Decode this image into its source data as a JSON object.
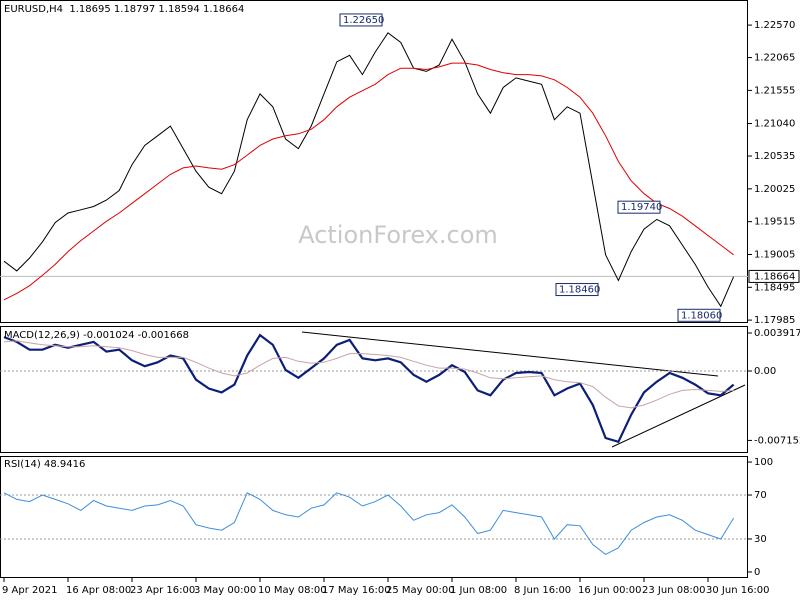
{
  "chart_data": [
    {
      "type": "line",
      "title": "EURUSD,H4  1.18695 1.18797 1.18594 1.18664",
      "watermark": "ActionForex.com",
      "ylim": [
        1.1794,
        1.2296
      ],
      "yticks": [
        {
          "value": 1.2257,
          "label": "1.22570"
        },
        {
          "value": 1.22065,
          "label": "1.22065"
        },
        {
          "value": 1.21555,
          "label": "1.21555"
        },
        {
          "value": 1.2104,
          "label": "1.21040"
        },
        {
          "value": 1.20535,
          "label": "1.20535"
        },
        {
          "value": 1.20025,
          "label": "1.20025"
        },
        {
          "value": 1.19515,
          "label": "1.19515"
        },
        {
          "value": 1.19005,
          "label": "1.19005"
        },
        {
          "value": 1.18495,
          "label": "1.18495"
        },
        {
          "value": 1.17985,
          "label": "1.17985"
        }
      ],
      "series": [
        {
          "color": "#000000",
          "values": [
            1.189,
            1.1875,
            1.1895,
            1.192,
            1.195,
            1.1965,
            1.197,
            1.1975,
            1.1985,
            1.2,
            1.204,
            1.207,
            1.2085,
            1.21,
            1.2065,
            1.203,
            1.2005,
            1.1995,
            1.203,
            1.211,
            1.215,
            1.213,
            1.208,
            1.2065,
            1.21,
            1.215,
            1.22,
            1.221,
            1.218,
            1.2215,
            1.2245,
            1.223,
            1.219,
            1.2185,
            1.2195,
            1.2235,
            1.22,
            1.215,
            1.212,
            1.216,
            1.2175,
            1.217,
            1.2165,
            1.211,
            1.213,
            1.212,
            1.201,
            1.19,
            1.186,
            1.1905,
            1.194,
            1.1955,
            1.1945,
            1.1915,
            1.1885,
            1.185,
            1.182,
            1.1866
          ]
        },
        {
          "color": "#e00000",
          "values": [
            1.183,
            1.184,
            1.1852,
            1.1868,
            1.1885,
            1.1905,
            1.1922,
            1.1937,
            1.1952,
            1.1965,
            1.198,
            1.1995,
            1.201,
            1.2025,
            1.2035,
            1.2038,
            1.2035,
            1.2033,
            1.204,
            1.2055,
            1.207,
            1.208,
            1.2085,
            1.2088,
            1.2095,
            1.211,
            1.213,
            1.2145,
            1.2155,
            1.2165,
            1.218,
            1.219,
            1.219,
            1.2188,
            1.2192,
            1.2198,
            1.2198,
            1.2195,
            1.2188,
            1.2183,
            1.218,
            1.218,
            1.2178,
            1.2172,
            1.216,
            1.2145,
            1.212,
            1.2085,
            1.2045,
            1.2015,
            1.1995,
            1.198,
            1.1972,
            1.196,
            1.1945,
            1.193,
            1.1915,
            1.19
          ]
        }
      ],
      "current_price": 1.18664,
      "annotations": [
        {
          "value": 1.2265,
          "label": "1.22650"
        },
        {
          "value": 1.1974,
          "label": "1.19740"
        },
        {
          "value": 1.1846,
          "label": "1.18460"
        },
        {
          "value": 1.1806,
          "label": "1.18060"
        }
      ]
    },
    {
      "type": "line",
      "title": "MACD(12,26,9) -0.001024 -0.001668",
      "ylim": [
        -0.00845,
        0.00464
      ],
      "yticks": [
        0.003917,
        {
          "value": 0,
          "label": "0.00"
        },
        -0.007152
      ],
      "levels": [
        0
      ],
      "series": [
        {
          "color": "#0c1f78",
          "values": [
            0.0035,
            0.003,
            0.0022,
            0.0022,
            0.0027,
            0.0024,
            0.0027,
            0.003,
            0.002,
            0.0022,
            0.0011,
            0.0005,
            0.0009,
            0.0016,
            0.0013,
            -0.0009,
            -0.0018,
            -0.0022,
            -0.0014,
            0.0016,
            0.0037,
            0.0027,
            0.0001,
            -0.0007,
            0.0003,
            0.0013,
            0.0027,
            0.0032,
            0.0013,
            0.0011,
            0.0013,
            0.0009,
            -0.0004,
            -0.0011,
            -0.0004,
            0.0006,
            -0.0001,
            -0.002,
            -0.0025,
            -0.0009,
            -0.0002,
            -0.0001,
            -0.0002,
            -0.0025,
            -0.0018,
            -0.0013,
            -0.0035,
            -0.0069,
            -0.0073,
            -0.0045,
            -0.0022,
            -0.0011,
            -0.0002,
            -0.0007,
            -0.0014,
            -0.0023,
            -0.0025,
            -0.0014
          ]
        },
        {
          "color": "#c9a3a3",
          "values": [
            0.003,
            0.0031,
            0.0029,
            0.0027,
            0.0026,
            0.0025,
            0.0025,
            0.0026,
            0.0025,
            0.0024,
            0.0021,
            0.0017,
            0.0014,
            0.0014,
            0.0014,
            0.0009,
            0.0003,
            -0.0002,
            -0.0005,
            -0.0002,
            0.0006,
            0.0013,
            0.0014,
            0.001,
            0.0008,
            0.0009,
            0.0013,
            0.0018,
            0.0018,
            0.0017,
            0.0016,
            0.0014,
            0.001,
            0.0006,
            0.0003,
            0.0003,
            0.0002,
            -0.0002,
            -0.0007,
            -0.0008,
            -0.0007,
            -0.0006,
            -0.0005,
            -0.0009,
            -0.0011,
            -0.0012,
            -0.0016,
            -0.0027,
            -0.0036,
            -0.0038,
            -0.0035,
            -0.003,
            -0.0024,
            -0.002,
            -0.0019,
            -0.002,
            -0.0021,
            -0.002
          ]
        }
      ]
    },
    {
      "type": "line",
      "title": "RSI(14) 48.9416",
      "ylim": [
        -5.5,
        105.5
      ],
      "yticks": [
        100,
        70,
        30,
        0
      ],
      "levels": [
        70,
        30
      ],
      "series": [
        {
          "color": "#3c8fdc",
          "values": [
            72,
            66,
            64,
            70,
            66,
            62,
            56,
            65,
            60,
            58,
            56,
            60,
            61,
            65,
            60,
            43,
            40,
            38,
            45,
            72,
            66,
            56,
            52,
            50,
            58,
            61,
            72,
            68,
            60,
            64,
            70,
            60,
            47,
            52,
            54,
            61,
            50,
            35,
            38,
            56,
            54,
            52,
            50,
            30,
            43,
            42,
            25,
            16,
            22,
            38,
            45,
            50,
            52,
            47,
            38,
            34,
            30,
            49
          ]
        }
      ],
      "categories": [
        "9 Apr 2021",
        null,
        null,
        null,
        null,
        "16 Apr 08:00",
        null,
        null,
        null,
        null,
        "23 Apr 16:00",
        null,
        null,
        null,
        null,
        "3 May 00:00",
        null,
        null,
        null,
        null,
        "10 May 08:00",
        null,
        null,
        null,
        null,
        "17 May 16:00",
        null,
        null,
        null,
        null,
        "25 May 00:00",
        null,
        null,
        null,
        null,
        "1 Jun 08:00",
        null,
        null,
        null,
        null,
        "8 Jun 16:00",
        null,
        null,
        null,
        null,
        "16 Jun 00:00",
        null,
        null,
        null,
        null,
        "23 Jun 08:00",
        null,
        null,
        null,
        null,
        "30 Jun 16:00",
        null,
        null
      ]
    }
  ]
}
